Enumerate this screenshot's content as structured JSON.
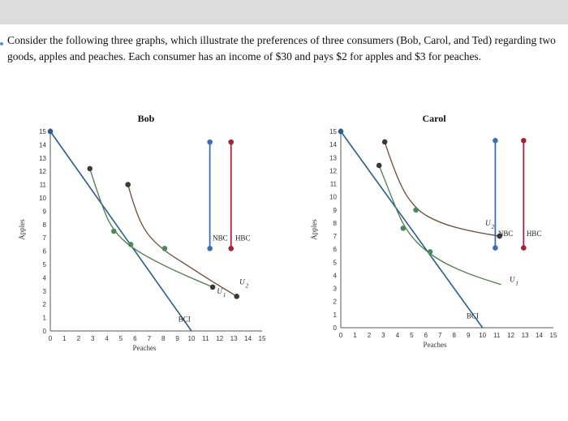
{
  "question": "Consider the following three graphs, which illustrate the preferences of three consumers (Bob, Carol, and Ted) regarding two goods, apples and peaches. Each consumer has an income of $30 and pays $2 for apples and $3 for peaches.",
  "chart_data": [
    {
      "type": "line",
      "title": "Bob",
      "xlabel": "Peaches",
      "ylabel": "Apples",
      "xlim": [
        0,
        15
      ],
      "ylim": [
        0,
        15
      ],
      "xticks": [
        0,
        1,
        2,
        3,
        4,
        5,
        6,
        7,
        8,
        9,
        10,
        11,
        12,
        13,
        14,
        15
      ],
      "yticks": [
        0,
        1,
        2,
        3,
        4,
        5,
        6,
        7,
        8,
        9,
        10,
        11,
        12,
        13,
        14,
        15
      ],
      "budget_line": {
        "name": "BCI",
        "points": [
          [
            0,
            15
          ],
          [
            10,
            0
          ]
        ],
        "color": "#2a5d8f"
      },
      "vertical_lines": [
        {
          "name": "NBC",
          "x": 11.3,
          "y_range": [
            6.2,
            14.2
          ],
          "color": "#3a70b0"
        },
        {
          "name": "HBC",
          "x": 12.8,
          "y_range": [
            6.2,
            14.2
          ],
          "color": "#a3233a"
        }
      ],
      "indifference_curves": [
        {
          "name": "U1",
          "color": "#4a7a4a",
          "points": [
            [
              2.8,
              12.2
            ],
            [
              3.7,
              9.2
            ],
            [
              4.5,
              7.5
            ],
            [
              5.7,
              6.3
            ],
            [
              7.5,
              5.2
            ],
            [
              9.5,
              4.2
            ],
            [
              11.5,
              3.3
            ]
          ]
        },
        {
          "name": "U2",
          "color": "#6b4a3a",
          "points": [
            [
              5.5,
              11
            ],
            [
              6,
              9.1
            ],
            [
              6.8,
              7.3
            ],
            [
              8.1,
              6
            ],
            [
              9.6,
              5.0
            ],
            [
              11.2,
              3.9
            ],
            [
              13.2,
              2.6
            ]
          ]
        }
      ],
      "points": [
        {
          "x": 0,
          "y": 15,
          "color": "#2a5d8f"
        },
        {
          "x": 2.8,
          "y": 12.2,
          "color": "#3a3a3a"
        },
        {
          "x": 5.5,
          "y": 11,
          "color": "#3a3a3a"
        },
        {
          "x": 4.5,
          "y": 7.5,
          "color": "#4a8a5a"
        },
        {
          "x": 5.7,
          "y": 6.5,
          "color": "#4a8a5a"
        },
        {
          "x": 8.1,
          "y": 6.2,
          "color": "#4a8a5a"
        },
        {
          "x": 11.5,
          "y": 3.3,
          "color": "#3a3a3a"
        },
        {
          "x": 13.2,
          "y": 2.6,
          "color": "#3a3a3a"
        },
        {
          "x": 11.3,
          "y": 14.2,
          "color": "#3a70b0"
        },
        {
          "x": 11.3,
          "y": 6.2,
          "color": "#3a70b0"
        },
        {
          "x": 12.8,
          "y": 14.2,
          "color": "#a3233a"
        },
        {
          "x": 12.8,
          "y": 6.2,
          "color": "#a3233a"
        }
      ],
      "labels": [
        {
          "text": "NBC",
          "x": 11.5,
          "y": 6.8
        },
        {
          "text": "HBC",
          "x": 13.1,
          "y": 6.8
        },
        {
          "text": "BCI",
          "x": 9.5,
          "y": 0.7
        },
        {
          "text": "U1",
          "x": 11.8,
          "y": 2.8
        },
        {
          "text": "U2",
          "x": 13.4,
          "y": 3.5
        }
      ]
    },
    {
      "type": "line",
      "title": "Carol",
      "xlabel": "Peaches",
      "ylabel": "Apples",
      "xlim": [
        0,
        15
      ],
      "ylim": [
        0,
        15
      ],
      "xticks": [
        0,
        1,
        2,
        3,
        4,
        5,
        6,
        7,
        8,
        9,
        10,
        11,
        12,
        13,
        14,
        15
      ],
      "yticks": [
        0,
        1,
        2,
        3,
        4,
        5,
        6,
        7,
        8,
        9,
        10,
        11,
        12,
        13,
        14,
        15
      ],
      "budget_line": {
        "name": "BCI",
        "points": [
          [
            0,
            15
          ],
          [
            10,
            0
          ]
        ],
        "color": "#2a5d8f"
      },
      "vertical_lines": [
        {
          "name": "NBC",
          "x": 10.9,
          "y_range": [
            6.1,
            14.3
          ],
          "color": "#3a70b0"
        },
        {
          "name": "HBC",
          "x": 12.9,
          "y_range": [
            6.1,
            14.3
          ],
          "color": "#a3233a"
        }
      ],
      "indifference_curves": [
        {
          "name": "U1",
          "color": "#4a7a4a",
          "points": [
            [
              2.7,
              12.4
            ],
            [
              3.5,
              10.2
            ],
            [
              4.4,
              7.8
            ],
            [
              5.5,
              6.3
            ],
            [
              7,
              5.1
            ],
            [
              9,
              4.1
            ],
            [
              11.3,
              3.3
            ]
          ]
        },
        {
          "name": "U2",
          "color": "#6b4a3a",
          "points": [
            [
              3.1,
              14.2
            ],
            [
              4,
              11.2
            ],
            [
              5.3,
              9.0
            ],
            [
              7,
              8.0
            ],
            [
              9,
              7.4
            ],
            [
              11.2,
              7.0
            ]
          ]
        }
      ],
      "points": [
        {
          "x": 0,
          "y": 15,
          "color": "#2a5d8f"
        },
        {
          "x": 2.7,
          "y": 12.4,
          "color": "#3a3a3a"
        },
        {
          "x": 3.1,
          "y": 14.2,
          "color": "#3a3a3a"
        },
        {
          "x": 5.3,
          "y": 9.0,
          "color": "#4a8a5a"
        },
        {
          "x": 4.4,
          "y": 7.6,
          "color": "#4a8a5a"
        },
        {
          "x": 6.3,
          "y": 5.8,
          "color": "#4a8a5a"
        },
        {
          "x": 11.2,
          "y": 7.0,
          "color": "#3a3a3a"
        },
        {
          "x": 10.9,
          "y": 14.3,
          "color": "#3a70b0"
        },
        {
          "x": 10.9,
          "y": 6.1,
          "color": "#3a70b0"
        },
        {
          "x": 12.9,
          "y": 14.3,
          "color": "#a3233a"
        },
        {
          "x": 12.9,
          "y": 6.1,
          "color": "#a3233a"
        }
      ],
      "labels": [
        {
          "text": "NBC",
          "x": 11.1,
          "y": 7.0
        },
        {
          "text": "HBC",
          "x": 13.1,
          "y": 7.0
        },
        {
          "text": "BCI",
          "x": 9.3,
          "y": 0.7
        },
        {
          "text": "U2",
          "x": 10.2,
          "y": 7.8
        },
        {
          "text": "U1",
          "x": 11.9,
          "y": 3.5
        }
      ]
    }
  ]
}
